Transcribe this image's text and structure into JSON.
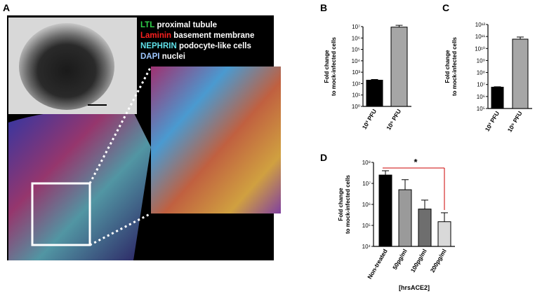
{
  "panel_a": {
    "label": "A",
    "legend": [
      {
        "stain": "LTL",
        "color": "#2fd04a",
        "text": "proximal tubule"
      },
      {
        "stain": "Laminin",
        "color": "#ff2020",
        "text": "basement membrane"
      },
      {
        "stain": "NEPHRIN",
        "color": "#5fe0e8",
        "text": "podocyte-like cells"
      },
      {
        "stain": "DAPI",
        "color": "#9fc8ff",
        "text": "nuclei"
      }
    ]
  },
  "chart_data": [
    {
      "type": "bar",
      "panel": "B",
      "ylabel": [
        "Fold change",
        "to mock-infected cells"
      ],
      "categories": [
        "10³ PFU",
        "10⁵ PFU"
      ],
      "values": [
        200,
        9000000
      ],
      "errors": [
        30,
        4000000
      ],
      "colors": [
        "#000000",
        "#a6a6a6"
      ],
      "log_scale": true,
      "ylim": [
        1,
        10000000
      ],
      "yticks": [
        {
          "value": 1,
          "label": "10⁰"
        },
        {
          "value": 10,
          "label": "10¹"
        },
        {
          "value": 100,
          "label": "10²"
        },
        {
          "value": 1000,
          "label": "10³"
        },
        {
          "value": 10000,
          "label": "10⁴"
        },
        {
          "value": 100000,
          "label": "10⁵"
        },
        {
          "value": 1000000,
          "label": "10⁶"
        },
        {
          "value": 10000000,
          "label": "10⁷"
        }
      ]
    },
    {
      "type": "bar",
      "panel": "C",
      "ylabel": [
        "Fold change",
        "to mock-infected cells"
      ],
      "categories": [
        "10³ PFU",
        "10⁵ PFU"
      ],
      "values": [
        6000000,
        60000000000
      ],
      "errors": [
        500000,
        30000000000
      ],
      "colors": [
        "#000000",
        "#a6a6a6"
      ],
      "log_scale": true,
      "ylim": [
        100000,
        1000000000000
      ],
      "yticks": [
        {
          "value": 100000,
          "label": "10⁵"
        },
        {
          "value": 1000000,
          "label": "10⁶"
        },
        {
          "value": 10000000,
          "label": "10⁷"
        },
        {
          "value": 100000000,
          "label": "10⁸"
        },
        {
          "value": 1000000000,
          "label": "10⁹"
        },
        {
          "value": 10000000000,
          "label": "10¹⁰"
        },
        {
          "value": 100000000000,
          "label": "10¹¹"
        },
        {
          "value": 1000000000000,
          "label": "10¹²"
        }
      ]
    },
    {
      "type": "bar",
      "panel": "D",
      "ylabel": [
        "Fold change",
        "to mock-infected cells"
      ],
      "xlabel": "[hrsACE2]",
      "categories": [
        "Non-treated",
        "50pg/ml",
        "100pg/ml",
        "200pg/ml"
      ],
      "values": [
        25000000,
        5000000,
        600000,
        150000
      ],
      "errors": [
        15000000,
        10000000,
        1000000,
        250000
      ],
      "colors": [
        "#000000",
        "#9a9a9a",
        "#6e6e6e",
        "#d9d9d9"
      ],
      "log_scale": true,
      "ylim": [
        10000,
        100000000
      ],
      "yticks": [
        {
          "value": 10000,
          "label": "10⁴"
        },
        {
          "value": 100000,
          "label": "10⁵"
        },
        {
          "value": 1000000,
          "label": "10⁶"
        },
        {
          "value": 10000000,
          "label": "10⁷"
        },
        {
          "value": 100000000,
          "label": "10⁸"
        }
      ],
      "annotation": "*",
      "annotation_color": "#cc0000"
    }
  ]
}
